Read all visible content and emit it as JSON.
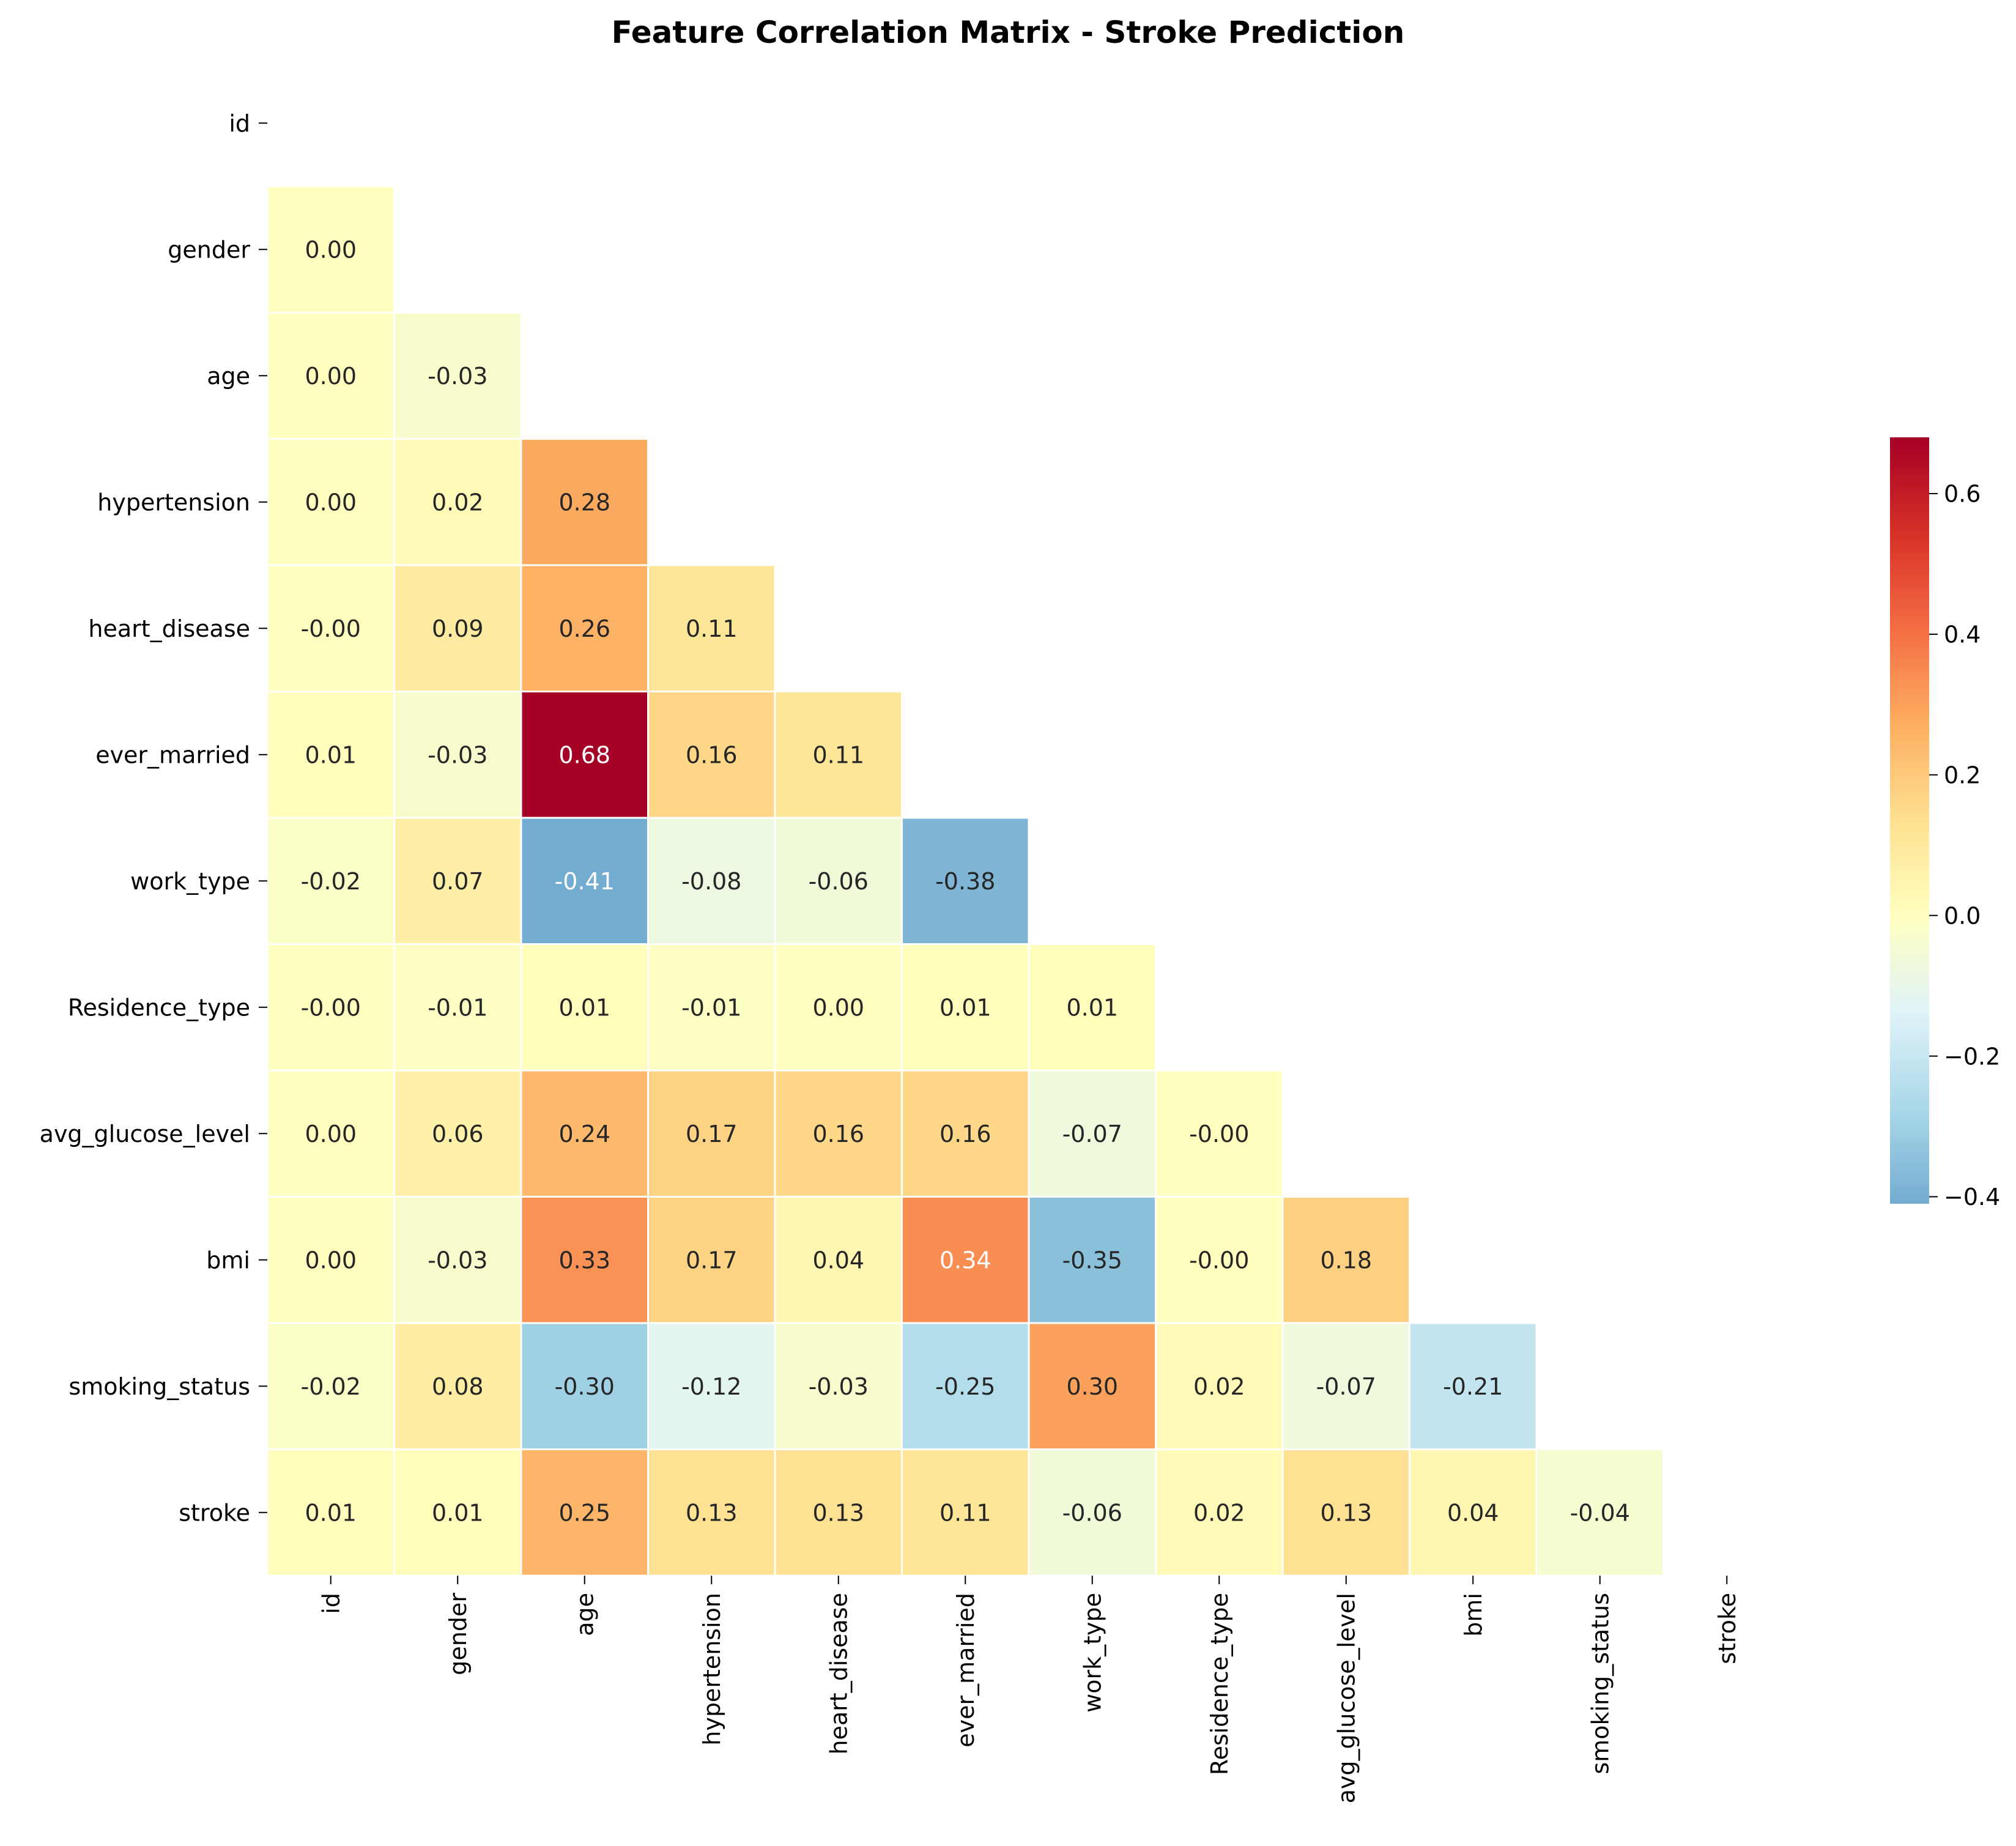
{
  "chart_data": {
    "type": "heatmap",
    "title": "Feature Correlation Matrix - Stroke Prediction",
    "variables": [
      "id",
      "gender",
      "age",
      "hypertension",
      "heart_disease",
      "ever_married",
      "work_type",
      "Residence_type",
      "avg_glucose_level",
      "bmi",
      "smoking_status",
      "stroke"
    ],
    "mask": "upper-triangle-including-diagonal",
    "matrix": [
      [
        null,
        null,
        null,
        null,
        null,
        null,
        null,
        null,
        null,
        null,
        null,
        null
      ],
      [
        0.0,
        null,
        null,
        null,
        null,
        null,
        null,
        null,
        null,
        null,
        null,
        null
      ],
      [
        0.0,
        -0.03,
        null,
        null,
        null,
        null,
        null,
        null,
        null,
        null,
        null,
        null
      ],
      [
        0.0,
        0.02,
        0.28,
        null,
        null,
        null,
        null,
        null,
        null,
        null,
        null,
        null
      ],
      [
        -0.0,
        0.09,
        0.26,
        0.11,
        null,
        null,
        null,
        null,
        null,
        null,
        null,
        null
      ],
      [
        0.01,
        -0.03,
        0.68,
        0.16,
        0.11,
        null,
        null,
        null,
        null,
        null,
        null,
        null
      ],
      [
        -0.02,
        0.07,
        -0.41,
        -0.08,
        -0.06,
        -0.38,
        null,
        null,
        null,
        null,
        null,
        null
      ],
      [
        -0.0,
        -0.01,
        0.01,
        -0.01,
        0.0,
        0.01,
        0.01,
        null,
        null,
        null,
        null,
        null
      ],
      [
        0.0,
        0.06,
        0.24,
        0.17,
        0.16,
        0.16,
        -0.07,
        -0.0,
        null,
        null,
        null,
        null
      ],
      [
        0.0,
        -0.03,
        0.33,
        0.17,
        0.04,
        0.34,
        -0.35,
        -0.0,
        0.18,
        null,
        null,
        null
      ],
      [
        -0.02,
        0.08,
        -0.3,
        -0.12,
        -0.03,
        -0.25,
        0.3,
        0.02,
        -0.07,
        -0.21,
        null,
        null
      ],
      [
        0.01,
        0.01,
        0.25,
        0.13,
        0.13,
        0.11,
        -0.06,
        0.02,
        0.13,
        0.04,
        -0.04,
        null
      ]
    ],
    "colormap": "RdYlBu_r",
    "colormap_center": 0,
    "colorbar_range": [
      -0.41,
      0.68
    ],
    "colorbar_ticks": [
      -0.4,
      -0.2,
      0.0,
      0.2,
      0.4,
      0.6
    ],
    "colorbar_tick_labels": [
      "−0.4",
      "−0.2",
      "0.0",
      "0.2",
      "0.4",
      "0.6"
    ],
    "value_format": "2 decimals",
    "legend": "colorbar-right"
  }
}
